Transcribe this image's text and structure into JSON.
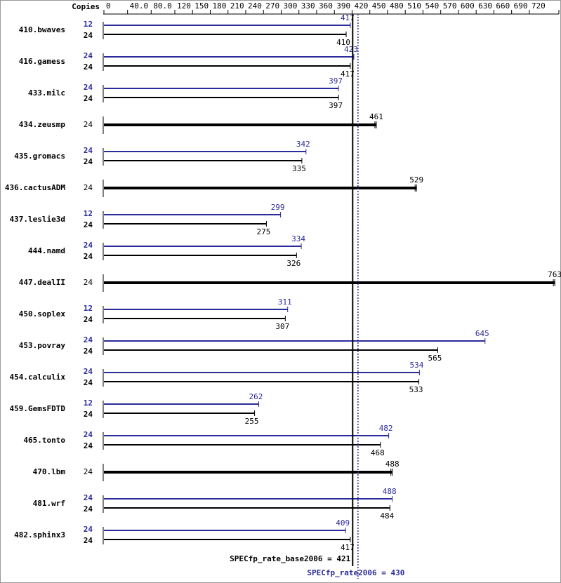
{
  "chart_data": {
    "type": "bar",
    "orientation": "horizontal",
    "copies_label": "Copies",
    "categories": [
      "410.bwaves",
      "416.gamess",
      "433.milc",
      "434.zeusmp",
      "435.gromacs",
      "436.cactusADM",
      "437.leslie3d",
      "444.namd",
      "447.dealII",
      "450.soplex",
      "453.povray",
      "454.calculix",
      "459.GemsFDTD",
      "465.tonto",
      "470.lbm",
      "481.wrf",
      "482.sphinx3"
    ],
    "xlim": [
      0,
      770
    ],
    "xticks": [
      0,
      {
        "value": 40,
        "label": "40.0"
      },
      {
        "value": 80,
        "label": "80.0"
      },
      120,
      150,
      180,
      210,
      240,
      270,
      300,
      330,
      360,
      390,
      420,
      450,
      480,
      510,
      540,
      570,
      600,
      630,
      660,
      690,
      720,
      770
    ],
    "series": [
      {
        "color": "#000000",
        "copies": [
          24,
          24,
          24,
          24,
          24,
          24,
          24,
          24,
          24,
          24,
          24,
          24,
          24,
          24,
          24,
          24,
          24
        ],
        "values": [
          410,
          417,
          397,
          461,
          335,
          529,
          275,
          326,
          763,
          307,
          565,
          533,
          255,
          468,
          488,
          484,
          417
        ]
      },
      {
        "color": "#2b2b9b",
        "copies": [
          12,
          24,
          24,
          null,
          24,
          null,
          12,
          24,
          null,
          12,
          24,
          24,
          12,
          24,
          null,
          24,
          24
        ],
        "values": [
          417,
          423,
          397,
          null,
          342,
          null,
          299,
          334,
          null,
          311,
          645,
          534,
          262,
          482,
          null,
          488,
          409
        ]
      }
    ],
    "reference_lines": [
      {
        "label": "SPECfp_rate_base2006 = 421",
        "value": 421,
        "color": "#000000",
        "style": "solid"
      },
      {
        "label": "SPECfp_rate2006 = 430",
        "value": 430,
        "color": "#2b2b9b",
        "style": "dotted"
      }
    ]
  }
}
